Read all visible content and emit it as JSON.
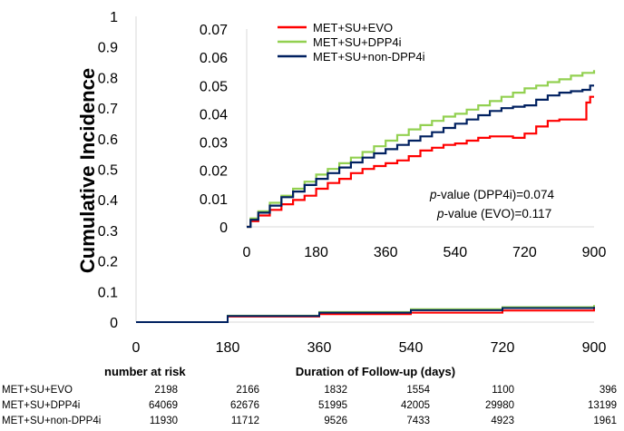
{
  "chart_data": [
    {
      "type": "line",
      "panel": "main",
      "ylabel": "Cumulative Incidence",
      "xlabel": "Duration of Follow-up (days)",
      "xlim": [
        0,
        900
      ],
      "ylim": [
        0,
        1
      ],
      "xticks": [
        "0",
        "180",
        "360",
        "540",
        "720",
        "900"
      ],
      "yticks": [
        "0",
        "0.1",
        "0.2",
        "0.3",
        "0.4",
        "0.5",
        "0.6",
        "0.7",
        "0.8",
        "0.9",
        "1"
      ],
      "grid": false,
      "series": [
        {
          "name": "MET+SU+EVO",
          "color": "#ff0000",
          "x": [
            0,
            180,
            360,
            540,
            720,
            900
          ],
          "y": [
            0,
            0.018,
            0.026,
            0.031,
            0.038,
            0.046
          ]
        },
        {
          "name": "MET+SU+DPP4i",
          "color": "#92d050",
          "x": [
            0,
            180,
            360,
            540,
            720,
            900
          ],
          "y": [
            0,
            0.021,
            0.033,
            0.042,
            0.049,
            0.056
          ]
        },
        {
          "name": "MET+SU+non-DPP4i",
          "color": "#002060",
          "x": [
            0,
            180,
            360,
            540,
            720,
            900
          ],
          "y": [
            0,
            0.02,
            0.031,
            0.039,
            0.046,
            0.05
          ]
        }
      ]
    },
    {
      "type": "line",
      "panel": "inset",
      "xlim": [
        0,
        900
      ],
      "ylim": [
        0,
        0.07
      ],
      "xticks": [
        "0",
        "180",
        "360",
        "540",
        "720",
        "900"
      ],
      "yticks": [
        "0",
        "0.01",
        "0.02",
        "0.03",
        "0.04",
        "0.05",
        "0.06",
        "0.07"
      ],
      "legend": {
        "placement": "top-right"
      },
      "annotations": [
        {
          "prefix": "p",
          "text": "-value (DPP4i)=0.074"
        },
        {
          "prefix": "p",
          "text": "-value (EVO)=0.117"
        }
      ],
      "series": [
        {
          "name": "MET+SU+EVO",
          "color": "#ff0000",
          "x": [
            0,
            10,
            30,
            60,
            90,
            120,
            150,
            180,
            210,
            240,
            270,
            300,
            330,
            360,
            390,
            420,
            450,
            480,
            510,
            540,
            570,
            600,
            630,
            660,
            690,
            720,
            750,
            780,
            810,
            840,
            870,
            880,
            890,
            900
          ],
          "y": [
            0,
            0.002,
            0.004,
            0.006,
            0.008,
            0.0095,
            0.011,
            0.0135,
            0.0155,
            0.017,
            0.019,
            0.0205,
            0.0215,
            0.0225,
            0.0235,
            0.025,
            0.027,
            0.028,
            0.029,
            0.0295,
            0.0305,
            0.0315,
            0.032,
            0.032,
            0.0315,
            0.033,
            0.0355,
            0.0375,
            0.038,
            0.038,
            0.038,
            0.044,
            0.046,
            0.046
          ]
        },
        {
          "name": "MET+SU+DPP4i",
          "color": "#92d050",
          "x": [
            0,
            10,
            30,
            60,
            90,
            120,
            150,
            180,
            210,
            240,
            270,
            300,
            330,
            360,
            390,
            420,
            450,
            480,
            510,
            540,
            570,
            600,
            630,
            660,
            690,
            720,
            750,
            780,
            810,
            840,
            870,
            900
          ],
          "y": [
            0,
            0.003,
            0.0055,
            0.0085,
            0.011,
            0.0135,
            0.016,
            0.0185,
            0.0205,
            0.0225,
            0.0245,
            0.0265,
            0.0285,
            0.0305,
            0.0325,
            0.0345,
            0.036,
            0.0375,
            0.039,
            0.04,
            0.0415,
            0.043,
            0.0445,
            0.046,
            0.0475,
            0.049,
            0.05,
            0.0512,
            0.0522,
            0.0535,
            0.0545,
            0.0555
          ]
        },
        {
          "name": "MET+SU+non-DPP4i",
          "color": "#002060",
          "x": [
            0,
            10,
            30,
            60,
            90,
            120,
            150,
            180,
            210,
            240,
            270,
            300,
            330,
            360,
            390,
            420,
            450,
            480,
            510,
            540,
            570,
            600,
            630,
            660,
            690,
            720,
            750,
            780,
            810,
            840,
            870,
            890,
            900
          ],
          "y": [
            0,
            0.0025,
            0.005,
            0.0075,
            0.0105,
            0.0125,
            0.0148,
            0.017,
            0.019,
            0.021,
            0.0228,
            0.0245,
            0.026,
            0.0275,
            0.029,
            0.0305,
            0.032,
            0.0335,
            0.035,
            0.0365,
            0.038,
            0.0395,
            0.041,
            0.042,
            0.0425,
            0.043,
            0.045,
            0.0465,
            0.0475,
            0.048,
            0.0485,
            0.05,
            0.05
          ]
        }
      ]
    }
  ],
  "risk_table": {
    "header": "number at risk",
    "rows": [
      {
        "label": "MET+SU+EVO",
        "values": [
          "2198",
          "2166",
          "1832",
          "1554",
          "1100",
          "396"
        ]
      },
      {
        "label": "MET+SU+DPP4i",
        "values": [
          "64069",
          "62676",
          "51995",
          "42005",
          "29980",
          "13199"
        ]
      },
      {
        "label": "MET+SU+non-DPP4i",
        "values": [
          "11930",
          "11712",
          "9526",
          "7433",
          "4923",
          "1961"
        ]
      }
    ]
  }
}
